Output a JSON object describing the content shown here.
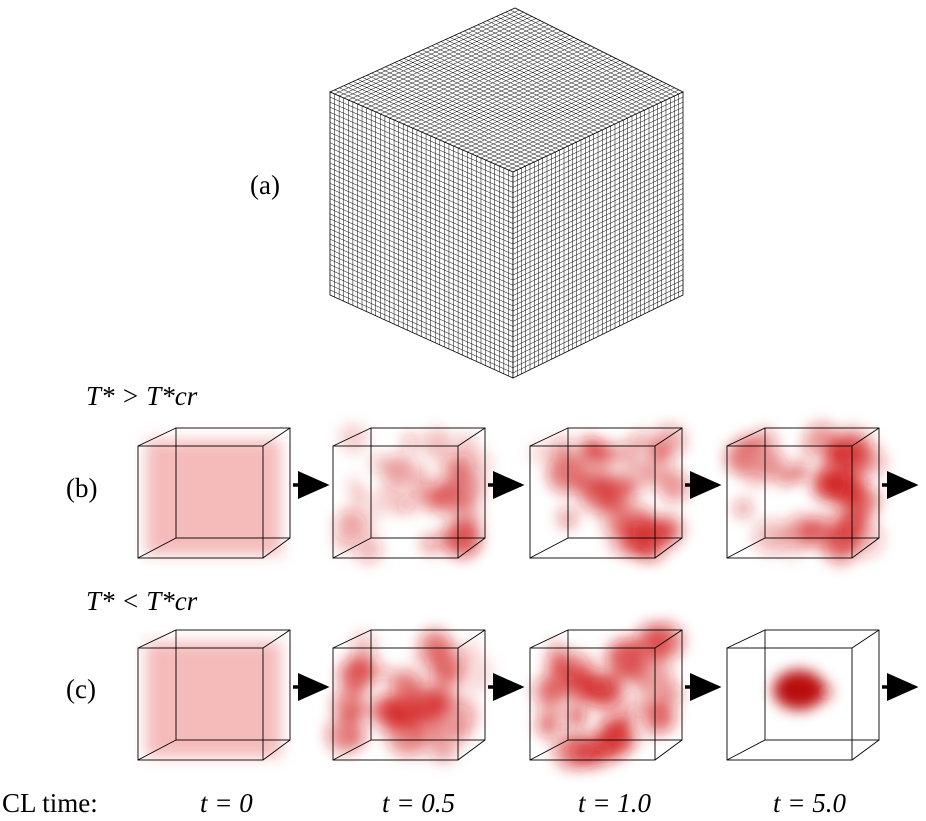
{
  "panels": {
    "a": {
      "label": "(a)"
    },
    "b": {
      "label": "(b)",
      "condition": "T* > T*cr"
    },
    "c": {
      "label": "(c)",
      "condition": "T* < T*cr"
    }
  },
  "time_axis": {
    "label": "CL time:",
    "times": [
      "t = 0",
      "t = 0.5",
      "t = 1.0",
      "t = 5.0"
    ]
  }
}
